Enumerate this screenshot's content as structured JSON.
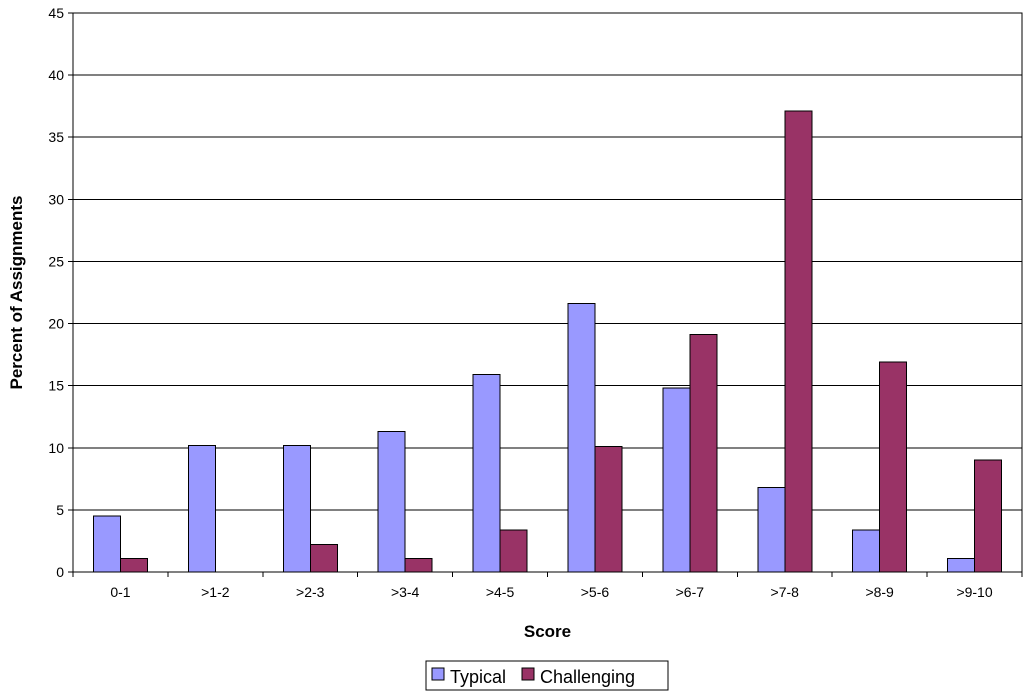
{
  "chart_data": {
    "type": "bar",
    "title": "",
    "xlabel": "Score",
    "ylabel": "Percent of Assignments",
    "categories": [
      "0-1",
      ">1-2",
      ">2-3",
      ">3-4",
      ">4-5",
      ">5-6",
      ">6-7",
      ">7-8",
      ">8-9",
      ">9-10"
    ],
    "series": [
      {
        "name": "Typical",
        "values": [
          4.5,
          10.2,
          10.2,
          11.3,
          15.9,
          21.6,
          14.8,
          6.8,
          3.4,
          1.1
        ],
        "color": "#9999ff"
      },
      {
        "name": "Challenging",
        "values": [
          1.1,
          0,
          2.2,
          1.1,
          3.4,
          10.1,
          19.1,
          37.1,
          16.9,
          9.0
        ],
        "color": "#993366"
      }
    ],
    "ylim": [
      0,
      45
    ],
    "yticks": [
      0,
      5,
      10,
      15,
      20,
      25,
      30,
      35,
      40,
      45
    ],
    "grid": true,
    "legend_position": "bottom-center"
  }
}
